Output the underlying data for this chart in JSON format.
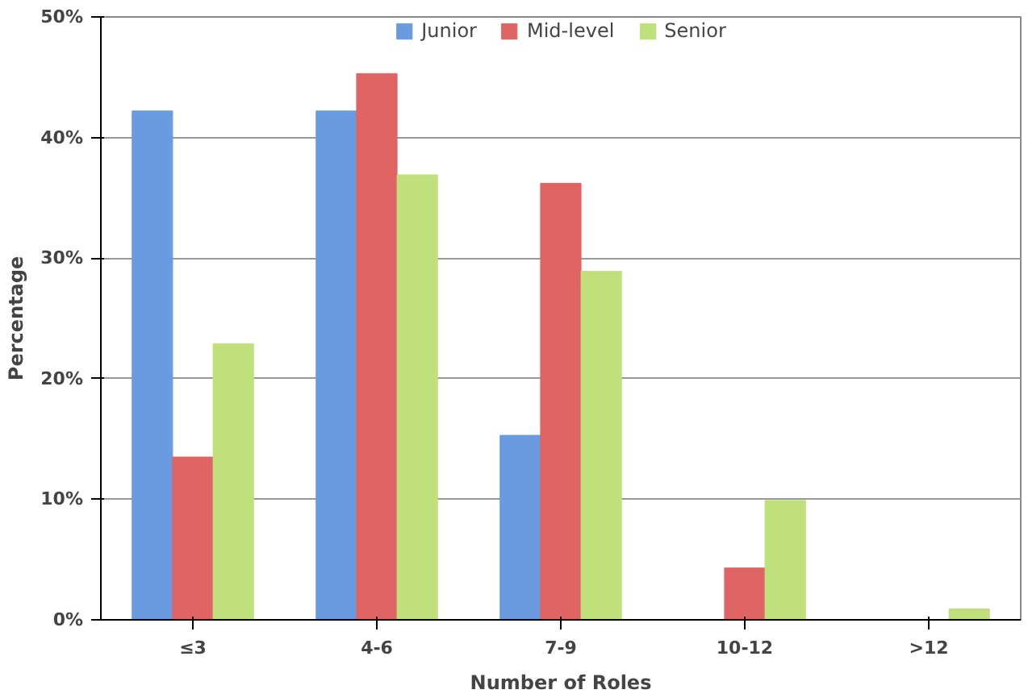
{
  "chart_data": {
    "type": "bar",
    "xlabel": "Number of Roles",
    "ylabel": "Percentage",
    "categories": [
      "≤3",
      "4-6",
      "7-9",
      "10-12",
      ">12"
    ],
    "series": [
      {
        "name": "Junior",
        "color": "#6a9be0",
        "values": [
          42.2,
          42.2,
          15.3,
          0,
          0
        ]
      },
      {
        "name": "Mid-level",
        "color": "#e06464",
        "values": [
          13.5,
          45.3,
          36.2,
          4.3,
          0
        ]
      },
      {
        "name": "Senior",
        "color": "#bfe07a",
        "values": [
          22.9,
          36.9,
          28.9,
          9.9,
          0.9
        ]
      }
    ],
    "ylim": [
      0,
      50
    ],
    "yticks": [
      {
        "value": 0,
        "label": "0%"
      },
      {
        "value": 10,
        "label": "10%"
      },
      {
        "value": 20,
        "label": "20%"
      },
      {
        "value": 30,
        "label": "30%"
      },
      {
        "value": 40,
        "label": "40%"
      },
      {
        "value": 50,
        "label": "50%"
      }
    ],
    "grid": "y",
    "legend": "top"
  }
}
